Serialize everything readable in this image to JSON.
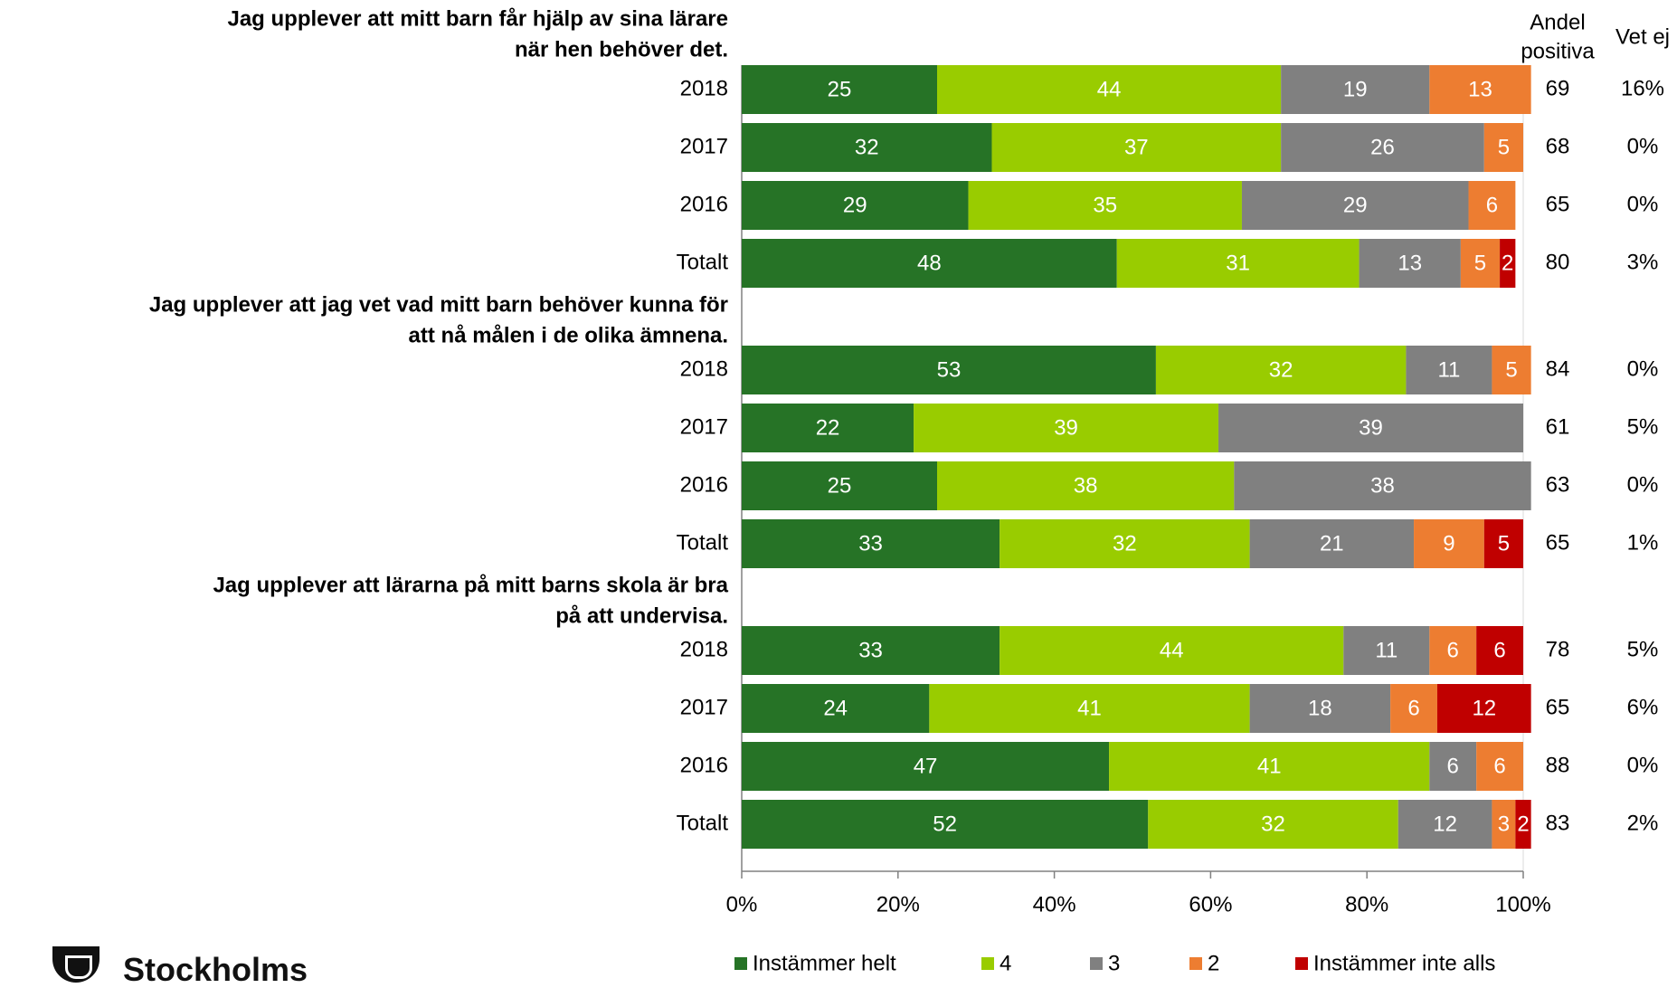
{
  "chart_data": {
    "type": "bar",
    "orientation": "horizontal",
    "stacked": true,
    "header_columns": [
      "Andel positiva",
      "Vet ej"
    ],
    "x_ticks": [
      "0%",
      "20%",
      "40%",
      "60%",
      "80%",
      "100%"
    ],
    "xlim": [
      0,
      100
    ],
    "legend_position": "bottom",
    "series": [
      {
        "name": "Instämmer helt",
        "color": "#267326"
      },
      {
        "name": "4",
        "color": "#99cc00"
      },
      {
        "name": "3",
        "color": "#808080"
      },
      {
        "name": "2",
        "color": "#ed7d31"
      },
      {
        "name": "Instämmer inte alls",
        "color": "#c00000"
      }
    ],
    "groups": [
      {
        "question": "Jag upplever att mitt barn får hjälp av sina lärare när hen behöver det.",
        "rows": [
          {
            "label": "2018",
            "values": [
              25,
              44,
              19,
              13,
              0
            ],
            "positive": "69",
            "unknown": "16%"
          },
          {
            "label": "2017",
            "values": [
              32,
              37,
              26,
              5,
              0
            ],
            "positive": "68",
            "unknown": "0%"
          },
          {
            "label": "2016",
            "values": [
              29,
              35,
              29,
              6,
              0
            ],
            "positive": "65",
            "unknown": "0%"
          },
          {
            "label": "Totalt",
            "values": [
              48,
              31,
              13,
              5,
              2
            ],
            "positive": "80",
            "unknown": "3%"
          }
        ]
      },
      {
        "question": "Jag upplever att jag vet vad mitt barn behöver kunna för att nå målen i de olika ämnena.",
        "rows": [
          {
            "label": "2018",
            "values": [
              53,
              32,
              11,
              5,
              0
            ],
            "positive": "84",
            "unknown": "0%"
          },
          {
            "label": "2017",
            "values": [
              22,
              39,
              39,
              0,
              0
            ],
            "positive": "61",
            "unknown": "5%"
          },
          {
            "label": "2016",
            "values": [
              25,
              38,
              38,
              0,
              0
            ],
            "positive": "63",
            "unknown": "0%"
          },
          {
            "label": "Totalt",
            "values": [
              33,
              32,
              21,
              9,
              5
            ],
            "positive": "65",
            "unknown": "1%"
          }
        ]
      },
      {
        "question": "Jag upplever att lärarna på mitt barns skola är bra på att undervisa.",
        "rows": [
          {
            "label": "2018",
            "values": [
              33,
              44,
              11,
              6,
              6
            ],
            "positive": "78",
            "unknown": "5%"
          },
          {
            "label": "2017",
            "values": [
              24,
              41,
              18,
              6,
              12
            ],
            "positive": "65",
            "unknown": "6%"
          },
          {
            "label": "2016",
            "values": [
              47,
              41,
              6,
              6,
              0
            ],
            "positive": "88",
            "unknown": "0%"
          },
          {
            "label": "Totalt",
            "values": [
              52,
              32,
              12,
              3,
              2
            ],
            "positive": "83",
            "unknown": "2%"
          }
        ]
      }
    ]
  },
  "logo": {
    "name": "Stockholms"
  }
}
